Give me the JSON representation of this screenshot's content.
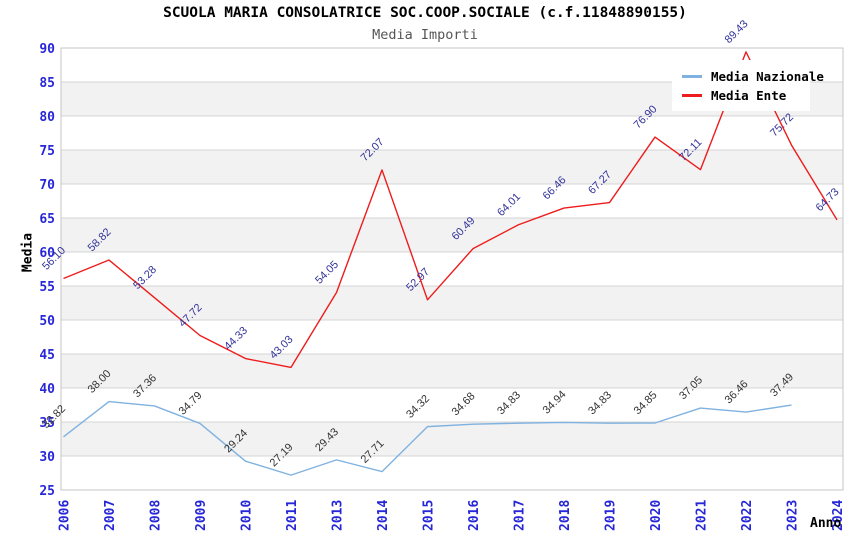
{
  "chart_data": {
    "type": "line",
    "title": "SCUOLA MARIA CONSOLATRICE SOC.COOP.SOCIALE (c.f.11848890155)",
    "subtitle": "Media Importi",
    "xlabel": "Anno",
    "ylabel": "Media",
    "ylim": [
      25,
      90
    ],
    "ytick_step": 5,
    "grid": "horizontal-bands",
    "legend_position": "top-right",
    "categories": [
      "2006",
      "2007",
      "2008",
      "2009",
      "2010",
      "2011",
      "2013",
      "2014",
      "2015",
      "2016",
      "2017",
      "2018",
      "2019",
      "2020",
      "2021",
      "2022",
      "2023",
      "2024"
    ],
    "series": [
      {
        "name": "Media Nazionale",
        "color": "#7fb2e0",
        "label_color": "#333333",
        "values": [
          32.82,
          38.0,
          37.36,
          34.79,
          29.24,
          27.19,
          29.43,
          27.71,
          34.32,
          34.68,
          34.83,
          34.94,
          34.83,
          34.85,
          37.05,
          36.46,
          37.49,
          null
        ]
      },
      {
        "name": "Media Ente",
        "color": "#ee1c1c",
        "label_color": "#333399",
        "values": [
          56.1,
          58.82,
          53.28,
          47.72,
          44.33,
          43.03,
          54.05,
          72.07,
          52.97,
          60.49,
          64.01,
          66.46,
          67.27,
          76.9,
          72.11,
          89.43,
          75.72,
          64.73
        ]
      }
    ],
    "colors": {
      "tick_label": "#2727d8",
      "band_fill": "#f2f2f2",
      "grid_line": "#d4d4d4",
      "plot_border": "#c6c6c6",
      "title": "#000000",
      "subtitle": "#555555"
    }
  }
}
